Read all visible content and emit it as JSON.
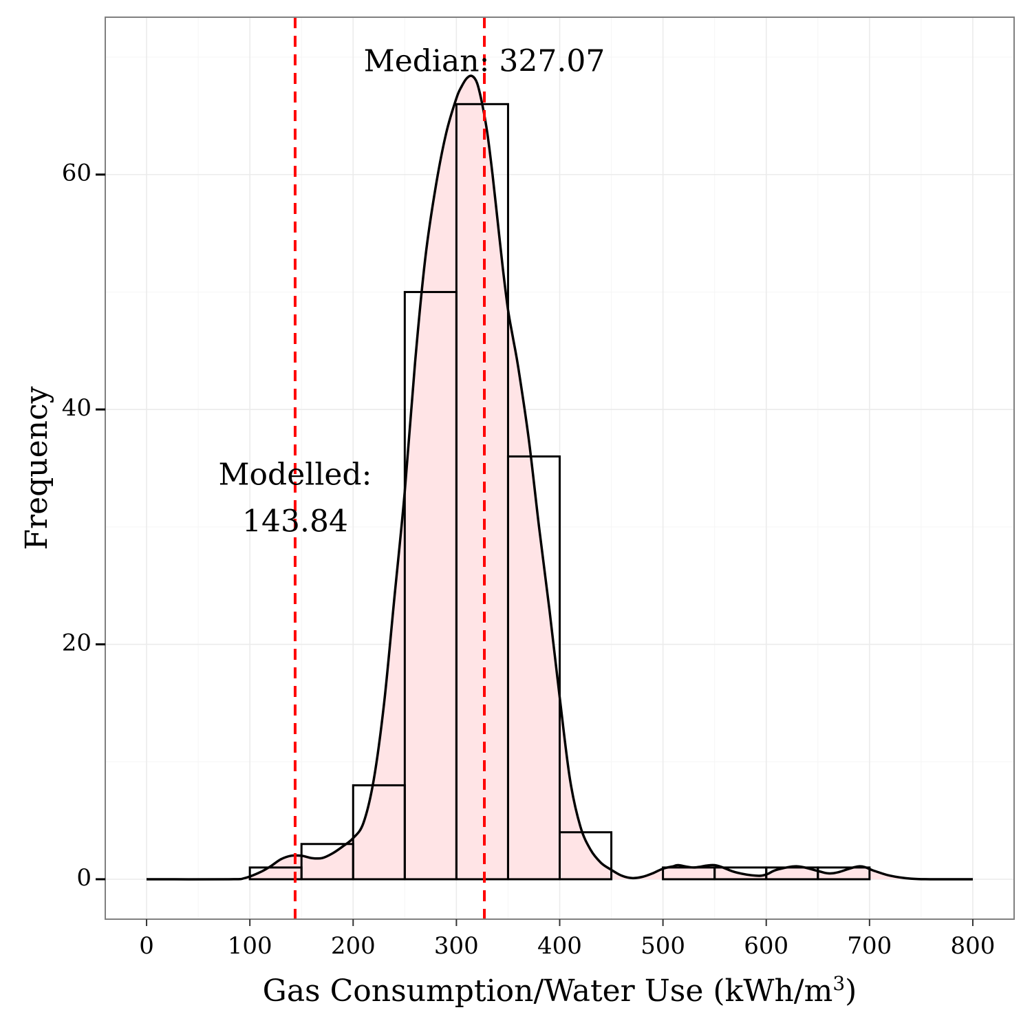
{
  "chart_data": {
    "type": "bar",
    "subtype": "histogram",
    "title": "",
    "xlabel": "Gas Consumption/Water Use (kWh/m",
    "xlabel_superscript": "3",
    "xlabel_suffix": ")",
    "ylabel": "Frequency",
    "xlim": [
      -40,
      840
    ],
    "ylim": [
      -3.4,
      73.4
    ],
    "x_ticks": [
      0,
      100,
      200,
      300,
      400,
      500,
      600,
      700,
      800
    ],
    "y_ticks": [
      0,
      20,
      40,
      60
    ],
    "grid": true,
    "bin_width": 50,
    "bins": [
      {
        "start": 100,
        "end": 150,
        "count": 1
      },
      {
        "start": 150,
        "end": 200,
        "count": 3
      },
      {
        "start": 200,
        "end": 250,
        "count": 8
      },
      {
        "start": 250,
        "end": 300,
        "count": 50
      },
      {
        "start": 300,
        "end": 350,
        "count": 66
      },
      {
        "start": 350,
        "end": 400,
        "count": 36
      },
      {
        "start": 400,
        "end": 450,
        "count": 4
      },
      {
        "start": 500,
        "end": 550,
        "count": 1
      },
      {
        "start": 550,
        "end": 600,
        "count": 1
      },
      {
        "start": 600,
        "end": 650,
        "count": 1
      },
      {
        "start": 650,
        "end": 700,
        "count": 1
      }
    ],
    "density_curve": {
      "x": [
        0,
        80,
        95,
        110,
        120,
        130,
        140,
        150,
        160,
        170,
        180,
        190,
        200,
        210,
        220,
        230,
        240,
        250,
        260,
        270,
        280,
        290,
        300,
        305,
        310,
        315,
        320,
        325,
        330,
        335,
        340,
        345,
        350,
        355,
        360,
        370,
        380,
        390,
        400,
        410,
        420,
        430,
        440,
        450,
        460,
        470,
        480,
        490,
        500,
        510,
        515,
        530,
        550,
        570,
        590,
        600,
        610,
        630,
        650,
        660,
        670,
        690,
        705,
        720,
        740,
        760,
        800
      ],
      "y": [
        0,
        0,
        0.1,
        0.6,
        1.1,
        1.7,
        2.0,
        2.0,
        1.8,
        1.8,
        2.2,
        2.8,
        3.5,
        4.8,
        8.5,
        15,
        24,
        33,
        44,
        53,
        59,
        63.5,
        66.5,
        67.5,
        68.2,
        68.4,
        67.8,
        66,
        63.5,
        60,
        56,
        52,
        48.5,
        46,
        43.5,
        37.5,
        30,
        23,
        15.5,
        8.5,
        4.5,
        2.5,
        1.4,
        0.8,
        0.3,
        0.1,
        0.2,
        0.5,
        0.9,
        1.1,
        1.2,
        1.0,
        1.2,
        0.6,
        0.3,
        0.4,
        0.8,
        1.1,
        0.7,
        0.5,
        0.6,
        1.1,
        0.7,
        0.3,
        0.05,
        0,
        0
      ]
    },
    "vlines": [
      {
        "x": 143.84,
        "style": "dashed",
        "color": "#ff0000"
      },
      {
        "x": 327.07,
        "style": "dashed",
        "color": "#ff0000"
      }
    ],
    "annotations": [
      {
        "lines": [
          "Median: 327.07"
        ],
        "x": 327.07,
        "y": 69.5
      },
      {
        "lines": [
          "Modelled:",
          "143.84"
        ],
        "x": 143.84,
        "y": 34.3
      }
    ],
    "colors": {
      "bar_outline": "#000000",
      "density_fill": "#ffe4e6",
      "density_line": "#000000",
      "grid": "#ebebeb",
      "panel_border": "#7f7f7f",
      "vline": "#ff0000"
    }
  }
}
